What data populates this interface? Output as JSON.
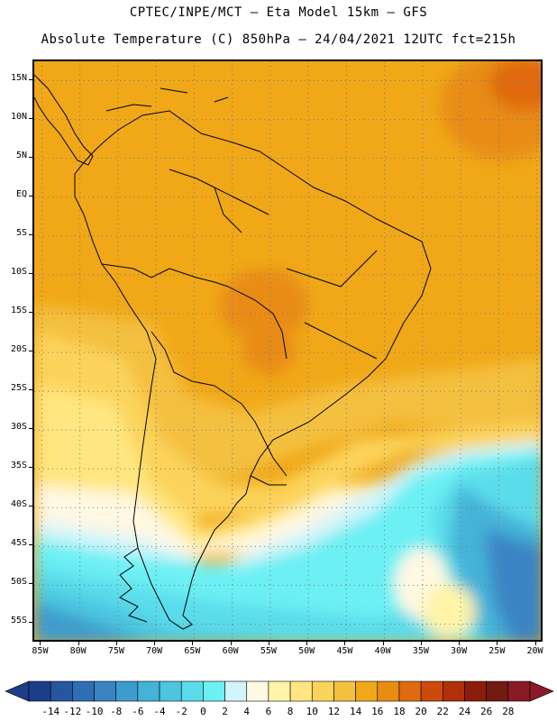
{
  "title_line1": "CPTEC/INPE/MCT –  Eta Model 15km – GFS",
  "title_line2": "Absolute Temperature (C) 850hPa – 24/04/2021 12UTC fct=215h",
  "map": {
    "lat_labels": [
      "15N",
      "10N",
      "5N",
      "EQ",
      "5S",
      "10S",
      "15S",
      "20S",
      "25S",
      "30S",
      "35S",
      "40S",
      "45S",
      "50S",
      "55S"
    ],
    "lat_values": [
      15,
      10,
      5,
      0,
      -5,
      -10,
      -15,
      -20,
      -25,
      -30,
      -35,
      -40,
      -45,
      -50,
      -55
    ],
    "lon_labels": [
      "85W",
      "80W",
      "75W",
      "70W",
      "65W",
      "60W",
      "55W",
      "50W",
      "45W",
      "40W",
      "35W",
      "30W",
      "25W",
      "20W"
    ],
    "lon_values": [
      -85,
      -80,
      -75,
      -70,
      -65,
      -60,
      -55,
      -50,
      -45,
      -40,
      -35,
      -30,
      -25,
      -20
    ],
    "lat_range": [
      -57.5,
      17.5
    ],
    "lon_range": [
      -86,
      -19
    ]
  },
  "colorbar": {
    "labels": [
      "-14",
      "-12",
      "-10",
      "-8",
      "-6",
      "-4",
      "-2",
      "0",
      "2",
      "4",
      "6",
      "8",
      "10",
      "12",
      "14",
      "16",
      "18",
      "20",
      "22",
      "24",
      "26",
      "28"
    ],
    "colors": [
      "#1c3d8a",
      "#2556a0",
      "#2e6eb4",
      "#3a84c4",
      "#3c9ccf",
      "#45b2d8",
      "#4cc6e0",
      "#5adcea",
      "#6cf0f4",
      "#d2f4fa",
      "#fff8e2",
      "#fff4a8",
      "#ffe680",
      "#fcd45c",
      "#f4c040",
      "#f0a818",
      "#e88c14",
      "#e06a10",
      "#cc4a0c",
      "#b0300a",
      "#8c1c0a",
      "#701a10",
      "#8a1a28"
    ]
  }
}
